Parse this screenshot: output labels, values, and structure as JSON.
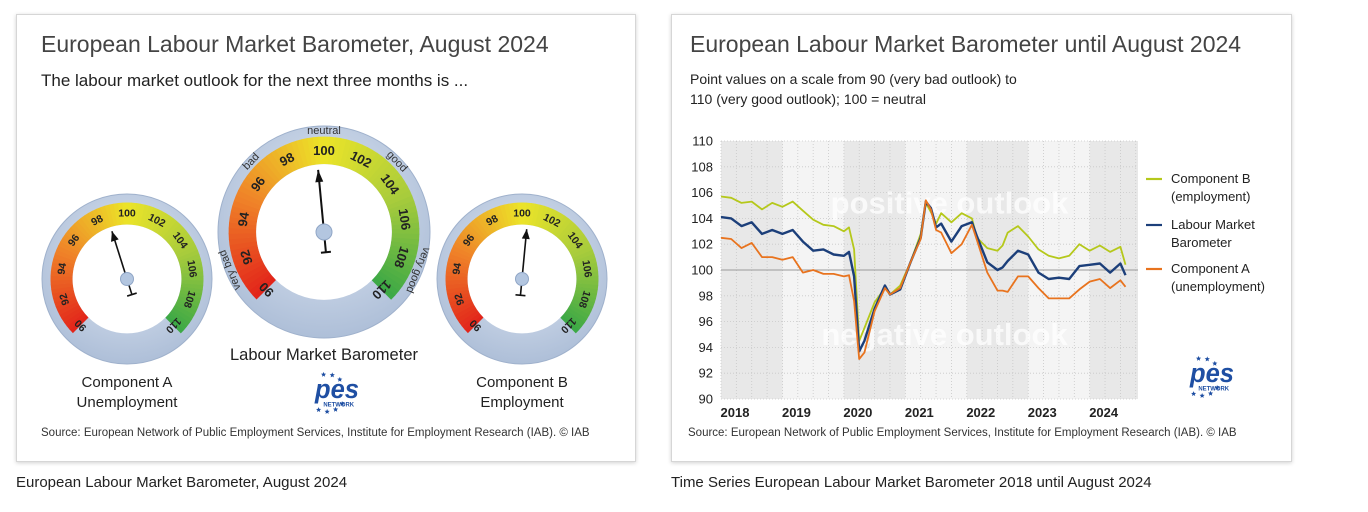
{
  "left_card": {
    "title": "European Labour Market Barometer, August 2024",
    "subtitle": "The labour market outlook for the next three months is ...",
    "source": "Source: European Network of Public Employment Services, Institute for Employment Research (IAB).  © IAB",
    "logo_text": "pes",
    "logo_subtext": "NETWORK"
  },
  "right_card": {
    "title": "European Labour Market Barometer until August 2024",
    "subtitle_line1": "Point values on a scale from 90 (very bad outlook) to",
    "subtitle_line2": "110 (very good outlook); 100 = neutral",
    "source": "Source: European Network of Public Employment Services, Institute for Employment Research (IAB).  © IAB",
    "logo_text": "pes",
    "logo_subtext": "NETWORK"
  },
  "captions": {
    "left": "European Labour Market Barometer, August 2024",
    "right": "Time Series European Labour Market Barometer 2018 until August 2024"
  },
  "colors": {
    "component_b": "#b5c81b",
    "barometer": "#1c3f7a",
    "component_a": "#e8731e",
    "gauge_ring": "#b7c7de",
    "shade": "#e8e8e8"
  },
  "chart_data": [
    {
      "type": "gauge",
      "scale_min": 90,
      "scale_max": 110,
      "tick_labels": [
        "90",
        "92",
        "94",
        "96",
        "98",
        "100",
        "102",
        "104",
        "106",
        "108",
        "110"
      ],
      "gauges": [
        {
          "name": "Component A",
          "label_line1": "Component A",
          "label_line2": "Unemployment",
          "value": 98.7
        },
        {
          "name": "Labour Market Barometer",
          "label_line1": "Labour Market Barometer",
          "label_line2": "",
          "value": 99.6,
          "zone_labels": {
            "neutral": "neutral",
            "bad": "bad",
            "good": "good",
            "very_bad": "very bad",
            "very_good": "very good"
          }
        },
        {
          "name": "Component B",
          "label_line1": "Component B",
          "label_line2": "Employment",
          "value": 100.4
        }
      ]
    },
    {
      "type": "line",
      "y_ticks": [
        "90",
        "92",
        "94",
        "96",
        "98",
        "100",
        "102",
        "104",
        "106",
        "108",
        "110"
      ],
      "ylim": [
        90,
        110
      ],
      "x_ticks": [
        "2018",
        "2019",
        "2020",
        "2021",
        "2022",
        "2023",
        "2024"
      ],
      "xlim": [
        "2018-01",
        "2024-08"
      ],
      "reference_line": 100,
      "overlay_positive": "positive outlook",
      "overlay_negative": "negative outlook",
      "shaded_years": [
        "2018",
        "2020",
        "2022",
        "2024"
      ],
      "legend_position": "right",
      "series": [
        {
          "name": "Component B (employment)",
          "legend_line1": "Component B",
          "legend_line2": "(employment)",
          "color_key": "component_b",
          "points": [
            [
              "2018-01",
              105.7
            ],
            [
              "2018-03",
              105.6
            ],
            [
              "2018-05",
              105.2
            ],
            [
              "2018-07",
              105.3
            ],
            [
              "2018-09",
              104.7
            ],
            [
              "2018-11",
              105.2
            ],
            [
              "2019-01",
              104.9
            ],
            [
              "2019-03",
              105.3
            ],
            [
              "2019-05",
              104.6
            ],
            [
              "2019-07",
              103.9
            ],
            [
              "2019-09",
              103.5
            ],
            [
              "2019-11",
              103.4
            ],
            [
              "2020-01",
              103.0
            ],
            [
              "2020-02",
              103.3
            ],
            [
              "2020-03",
              101.6
            ],
            [
              "2020-04",
              94.5
            ],
            [
              "2020-05",
              95.5
            ],
            [
              "2020-07",
              97.5
            ],
            [
              "2020-09",
              98.6
            ],
            [
              "2020-10",
              98.1
            ],
            [
              "2020-12",
              98.8
            ],
            [
              "2021-02",
              100.6
            ],
            [
              "2021-04",
              102.8
            ],
            [
              "2021-05",
              105.2
            ],
            [
              "2021-06",
              104.5
            ],
            [
              "2021-07",
              103.6
            ],
            [
              "2021-08",
              104.4
            ],
            [
              "2021-10",
              103.7
            ],
            [
              "2021-12",
              104.4
            ],
            [
              "2022-02",
              104.0
            ],
            [
              "2022-03",
              102.5
            ],
            [
              "2022-05",
              101.7
            ],
            [
              "2022-07",
              101.5
            ],
            [
              "2022-08",
              101.9
            ],
            [
              "2022-09",
              102.9
            ],
            [
              "2022-11",
              103.4
            ],
            [
              "2023-01",
              102.6
            ],
            [
              "2023-03",
              101.6
            ],
            [
              "2023-05",
              101.1
            ],
            [
              "2023-07",
              100.9
            ],
            [
              "2023-09",
              101.1
            ],
            [
              "2023-11",
              102.0
            ],
            [
              "2024-01",
              101.5
            ],
            [
              "2024-03",
              101.9
            ],
            [
              "2024-05",
              101.4
            ],
            [
              "2024-07",
              101.8
            ],
            [
              "2024-08",
              100.4
            ]
          ]
        },
        {
          "name": "Labour Market Barometer",
          "legend_line1": "Labour Market",
          "legend_line2": "Barometer",
          "color_key": "barometer",
          "points": [
            [
              "2018-01",
              104.1
            ],
            [
              "2018-03",
              104.0
            ],
            [
              "2018-05",
              103.4
            ],
            [
              "2018-07",
              103.7
            ],
            [
              "2018-09",
              102.8
            ],
            [
              "2018-11",
              103.1
            ],
            [
              "2019-01",
              102.8
            ],
            [
              "2019-03",
              103.1
            ],
            [
              "2019-05",
              102.2
            ],
            [
              "2019-07",
              101.5
            ],
            [
              "2019-09",
              101.6
            ],
            [
              "2019-11",
              101.2
            ],
            [
              "2020-01",
              101.1
            ],
            [
              "2020-02",
              101.4
            ],
            [
              "2020-03",
              99.5
            ],
            [
              "2020-04",
              93.7
            ],
            [
              "2020-05",
              94.5
            ],
            [
              "2020-07",
              97.0
            ],
            [
              "2020-09",
              98.8
            ],
            [
              "2020-10",
              98.1
            ],
            [
              "2020-12",
              98.5
            ],
            [
              "2021-02",
              100.6
            ],
            [
              "2021-04",
              102.5
            ],
            [
              "2021-05",
              105.3
            ],
            [
              "2021-06",
              104.8
            ],
            [
              "2021-07",
              103.3
            ],
            [
              "2021-08",
              103.6
            ],
            [
              "2021-10",
              102.2
            ],
            [
              "2021-12",
              103.4
            ],
            [
              "2022-02",
              103.7
            ],
            [
              "2022-03",
              102.6
            ],
            [
              "2022-05",
              100.6
            ],
            [
              "2022-07",
              100.0
            ],
            [
              "2022-08",
              100.2
            ],
            [
              "2022-09",
              100.7
            ],
            [
              "2022-11",
              101.5
            ],
            [
              "2023-01",
              101.2
            ],
            [
              "2023-03",
              99.8
            ],
            [
              "2023-05",
              99.3
            ],
            [
              "2023-07",
              99.4
            ],
            [
              "2023-09",
              99.3
            ],
            [
              "2023-11",
              100.3
            ],
            [
              "2024-01",
              100.4
            ],
            [
              "2024-03",
              100.5
            ],
            [
              "2024-05",
              99.8
            ],
            [
              "2024-07",
              100.5
            ],
            [
              "2024-08",
              99.6
            ]
          ]
        },
        {
          "name": "Component A (unemployment)",
          "legend_line1": "Component A",
          "legend_line2": "(unemployment)",
          "color_key": "component_a",
          "points": [
            [
              "2018-01",
              102.5
            ],
            [
              "2018-03",
              102.4
            ],
            [
              "2018-05",
              101.7
            ],
            [
              "2018-07",
              102.1
            ],
            [
              "2018-09",
              101.0
            ],
            [
              "2018-11",
              101.0
            ],
            [
              "2019-01",
              100.8
            ],
            [
              "2019-03",
              101.0
            ],
            [
              "2019-05",
              99.8
            ],
            [
              "2019-07",
              100.0
            ],
            [
              "2019-09",
              99.7
            ],
            [
              "2019-11",
              99.7
            ],
            [
              "2020-01",
              99.5
            ],
            [
              "2020-02",
              99.6
            ],
            [
              "2020-03",
              97.6
            ],
            [
              "2020-04",
              93.1
            ],
            [
              "2020-05",
              93.6
            ],
            [
              "2020-07",
              96.8
            ],
            [
              "2020-09",
              98.6
            ],
            [
              "2020-10",
              98.1
            ],
            [
              "2020-12",
              98.6
            ],
            [
              "2021-02",
              100.6
            ],
            [
              "2021-04",
              102.4
            ],
            [
              "2021-05",
              105.4
            ],
            [
              "2021-06",
              104.7
            ],
            [
              "2021-07",
              103.1
            ],
            [
              "2021-08",
              102.9
            ],
            [
              "2021-10",
              101.3
            ],
            [
              "2021-12",
              102.0
            ],
            [
              "2022-02",
              103.5
            ],
            [
              "2022-03",
              102.3
            ],
            [
              "2022-05",
              99.8
            ],
            [
              "2022-07",
              98.4
            ],
            [
              "2022-08",
              98.4
            ],
            [
              "2022-09",
              98.3
            ],
            [
              "2022-11",
              99.5
            ],
            [
              "2023-01",
              99.5
            ],
            [
              "2023-03",
              98.6
            ],
            [
              "2023-05",
              97.8
            ],
            [
              "2023-07",
              97.8
            ],
            [
              "2023-09",
              97.8
            ],
            [
              "2023-11",
              98.5
            ],
            [
              "2024-01",
              99.1
            ],
            [
              "2024-03",
              99.3
            ],
            [
              "2024-05",
              98.6
            ],
            [
              "2024-07",
              99.2
            ],
            [
              "2024-08",
              98.7
            ]
          ]
        }
      ]
    }
  ]
}
